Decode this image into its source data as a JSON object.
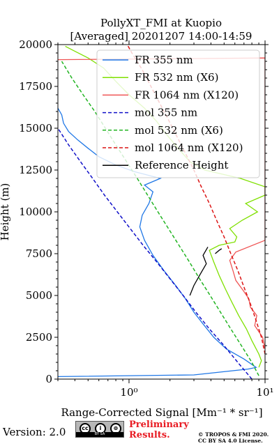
{
  "chart_data": {
    "type": "line",
    "title": [
      "PollyXT_FMI at Kuopio",
      "[Averaged] 20201207 14:00-14:59"
    ],
    "xlabel": "Range-Corrected Signal [Mm⁻¹ * sr⁻¹]",
    "ylabel": "Height (m)",
    "xscale": "log",
    "xlim": [
      0.3,
      10
    ],
    "ylim": [
      0,
      20000
    ],
    "x_ticks": [
      {
        "value": 1,
        "label": "10⁰"
      },
      {
        "value": 10,
        "label": "10¹"
      }
    ],
    "y_ticks": [
      0,
      2500,
      5000,
      7500,
      10000,
      12500,
      15000,
      17500,
      20000
    ],
    "y_tick_labels": [
      "0",
      "2500",
      "5000",
      "7500",
      "10000",
      "12500",
      "15000",
      "17500",
      "20000"
    ],
    "legend_position": "top-right",
    "series": [
      {
        "name": "FR 355 nm",
        "style": "solid",
        "color": "#1f77e6",
        "points": [
          [
            0.3,
            150
          ],
          [
            3.0,
            250
          ],
          [
            7.5,
            600
          ],
          [
            8.6,
            700
          ],
          [
            7.0,
            1200
          ],
          [
            5.2,
            1800
          ],
          [
            4.2,
            2500
          ],
          [
            3.5,
            3300
          ],
          [
            3.0,
            4000
          ],
          [
            2.6,
            4800
          ],
          [
            2.2,
            5600
          ],
          [
            1.8,
            6500
          ],
          [
            1.5,
            7400
          ],
          [
            1.3,
            8300
          ],
          [
            1.2,
            9100
          ],
          [
            1.25,
            9800
          ],
          [
            1.4,
            10500
          ],
          [
            1.5,
            11200
          ],
          [
            1.3,
            11600
          ],
          [
            1.7,
            12000
          ],
          [
            1.1,
            12400
          ],
          [
            0.8,
            12800
          ],
          [
            0.6,
            13300
          ],
          [
            0.5,
            13800
          ],
          [
            0.42,
            14300
          ],
          [
            0.36,
            14800
          ],
          [
            0.33,
            15300
          ],
          [
            0.32,
            15800
          ],
          [
            0.3,
            16200
          ]
        ]
      },
      {
        "name": "FR 532 nm (X6)",
        "style": "solid",
        "color": "#7fe000",
        "points": [
          [
            9.0,
            700
          ],
          [
            9.4,
            1100
          ],
          [
            9.0,
            1500
          ],
          [
            8.0,
            2300
          ],
          [
            7.3,
            3000
          ],
          [
            6.4,
            3800
          ],
          [
            5.7,
            4600
          ],
          [
            5.1,
            5400
          ],
          [
            4.6,
            6200
          ],
          [
            4.2,
            7000
          ],
          [
            3.9,
            7700
          ],
          [
            4.6,
            8000
          ],
          [
            6.0,
            8200
          ],
          [
            6.2,
            8500
          ],
          [
            5.5,
            9000
          ],
          [
            6.8,
            9500
          ],
          [
            8.8,
            10000
          ],
          [
            7.2,
            10500
          ],
          [
            10.0,
            11000
          ],
          [
            10.0,
            11500
          ],
          [
            6.6,
            12000
          ],
          [
            3.6,
            12500
          ],
          [
            2.8,
            13000
          ],
          [
            2.3,
            13800
          ],
          [
            1.9,
            14600
          ],
          [
            1.6,
            15400
          ],
          [
            1.3,
            16200
          ],
          [
            1.0,
            17000
          ],
          [
            0.8,
            17800
          ],
          [
            0.65,
            18600
          ],
          [
            0.5,
            19200
          ],
          [
            0.4,
            19600
          ],
          [
            0.34,
            19900
          ]
        ]
      },
      {
        "name": "FR 1064 nm (X120)",
        "style": "solid",
        "color": "#ef5454",
        "points": [
          [
            10.0,
            1800
          ],
          [
            9.6,
            2500
          ],
          [
            8.4,
            3200
          ],
          [
            8.7,
            3800
          ],
          [
            7.8,
            4300
          ],
          [
            7.6,
            4800
          ],
          [
            6.9,
            5300
          ],
          [
            6.1,
            5900
          ],
          [
            5.8,
            6500
          ],
          [
            5.5,
            7100
          ],
          [
            6.1,
            7600
          ],
          [
            10.0,
            8300
          ],
          [
            10.0,
            8800
          ],
          [
            10.0,
            9200
          ],
          [
            10.0,
            12500
          ],
          [
            10.0,
            19200
          ],
          [
            0.3,
            19100
          ]
        ]
      },
      {
        "name": "mol 355 nm",
        "style": "dashed",
        "color": "#1010c8",
        "points": [
          [
            8.0,
            0
          ],
          [
            6.3,
            1000
          ],
          [
            5.0,
            2000
          ],
          [
            3.9,
            3000
          ],
          [
            3.1,
            4000
          ],
          [
            2.5,
            5000
          ],
          [
            2.0,
            6000
          ],
          [
            1.6,
            7000
          ],
          [
            1.27,
            8000
          ],
          [
            1.02,
            9000
          ],
          [
            0.82,
            10000
          ],
          [
            0.66,
            11000
          ],
          [
            0.54,
            12000
          ],
          [
            0.44,
            13000
          ],
          [
            0.36,
            14000
          ],
          [
            0.3,
            15000
          ]
        ]
      },
      {
        "name": "mol 532 nm (X6)",
        "style": "dashed",
        "color": "#22b422",
        "points": [
          [
            9.0,
            200
          ],
          [
            8.0,
            1000
          ],
          [
            6.7,
            2000
          ],
          [
            5.6,
            3000
          ],
          [
            4.7,
            4000
          ],
          [
            3.95,
            5000
          ],
          [
            3.3,
            6000
          ],
          [
            2.78,
            7000
          ],
          [
            2.33,
            8000
          ],
          [
            1.95,
            9000
          ],
          [
            1.63,
            10000
          ],
          [
            1.37,
            11000
          ],
          [
            1.15,
            12000
          ],
          [
            0.96,
            13000
          ],
          [
            0.8,
            14000
          ],
          [
            0.67,
            15000
          ],
          [
            0.56,
            16000
          ],
          [
            0.46,
            17000
          ],
          [
            0.38,
            18000
          ],
          [
            0.32,
            19000
          ]
        ]
      },
      {
        "name": "mol 1064 nm (X120)",
        "style": "dashed",
        "color": "#dc1414",
        "points": [
          [
            10.0,
            1500
          ],
          [
            9.4,
            2500
          ],
          [
            8.6,
            3500
          ],
          [
            7.8,
            4500
          ],
          [
            7.0,
            5500
          ],
          [
            6.3,
            6500
          ],
          [
            5.6,
            7500
          ],
          [
            5.0,
            8500
          ],
          [
            4.4,
            9500
          ],
          [
            3.9,
            10500
          ],
          [
            3.4,
            11500
          ],
          [
            3.0,
            12500
          ],
          [
            2.6,
            13500
          ],
          [
            2.25,
            14500
          ],
          [
            1.95,
            15500
          ],
          [
            1.68,
            16500
          ],
          [
            1.45,
            17500
          ],
          [
            1.25,
            18500
          ],
          [
            1.05,
            19500
          ],
          [
            0.97,
            20000
          ]
        ]
      },
      {
        "name": "Reference Height",
        "style": "solid",
        "color": "#000000",
        "points": [
          [
            2.8,
            5000
          ],
          [
            3.0,
            5600
          ],
          [
            3.3,
            6200
          ],
          [
            3.7,
            6900
          ],
          [
            3.5,
            7400
          ],
          [
            3.8,
            7900
          ]
        ],
        "points2": [
          [
            4.3,
            7500
          ],
          [
            4.6,
            7700
          ],
          [
            4.8,
            7800
          ]
        ]
      }
    ]
  },
  "footer": {
    "version": "Version: 2.0",
    "cc_glyphs": [
      "cc",
      "i",
      "⊜"
    ],
    "cc_text": "BY   SA",
    "preliminary_line1": "Preliminary",
    "preliminary_line2": "Results.",
    "copyright_line1": "© TROPOS & FMI 2020.",
    "copyright_line2": "CC BY SA 4.0 License."
  }
}
